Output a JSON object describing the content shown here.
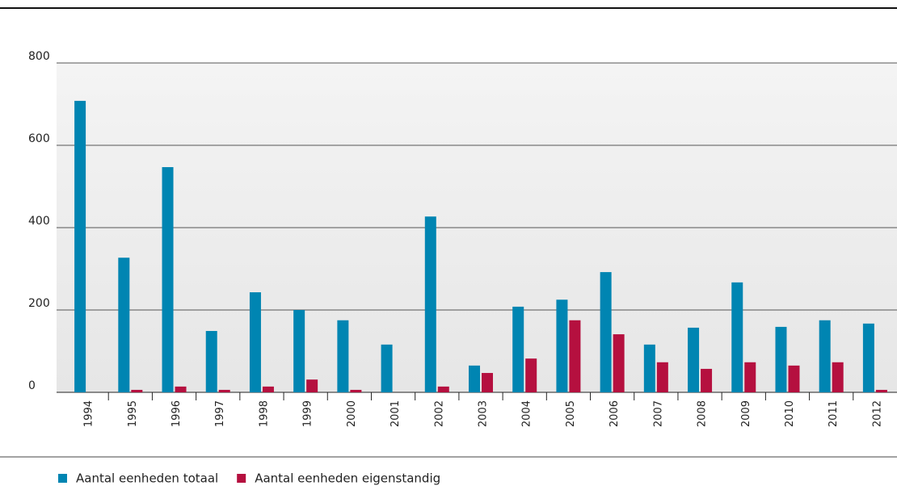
{
  "chart_data": {
    "type": "bar",
    "categories": [
      "1994",
      "1995",
      "1996",
      "1997",
      "1998",
      "1999",
      "2000",
      "2001",
      "2002",
      "2003",
      "2004",
      "2005",
      "2006",
      "2007",
      "2008",
      "2009",
      "2010",
      "2011",
      "2012"
    ],
    "series": [
      {
        "name": "Aantal eenheden totaal",
        "color": "#0085b2",
        "values": [
          708,
          327,
          547,
          149,
          243,
          200,
          175,
          116,
          427,
          65,
          208,
          225,
          292,
          116,
          157,
          267,
          159,
          175,
          167
        ]
      },
      {
        "name": "Aantal eenheden eigenstandig",
        "color": "#b5103f",
        "values": [
          0,
          6,
          14,
          6,
          14,
          31,
          6,
          0,
          14,
          47,
          82,
          175,
          141,
          73,
          57,
          73,
          65,
          73,
          6
        ]
      }
    ],
    "ylim": [
      0,
      800
    ],
    "yticks": [
      0,
      200,
      400,
      600,
      800
    ],
    "grid": true,
    "legend": "bottom-left"
  }
}
